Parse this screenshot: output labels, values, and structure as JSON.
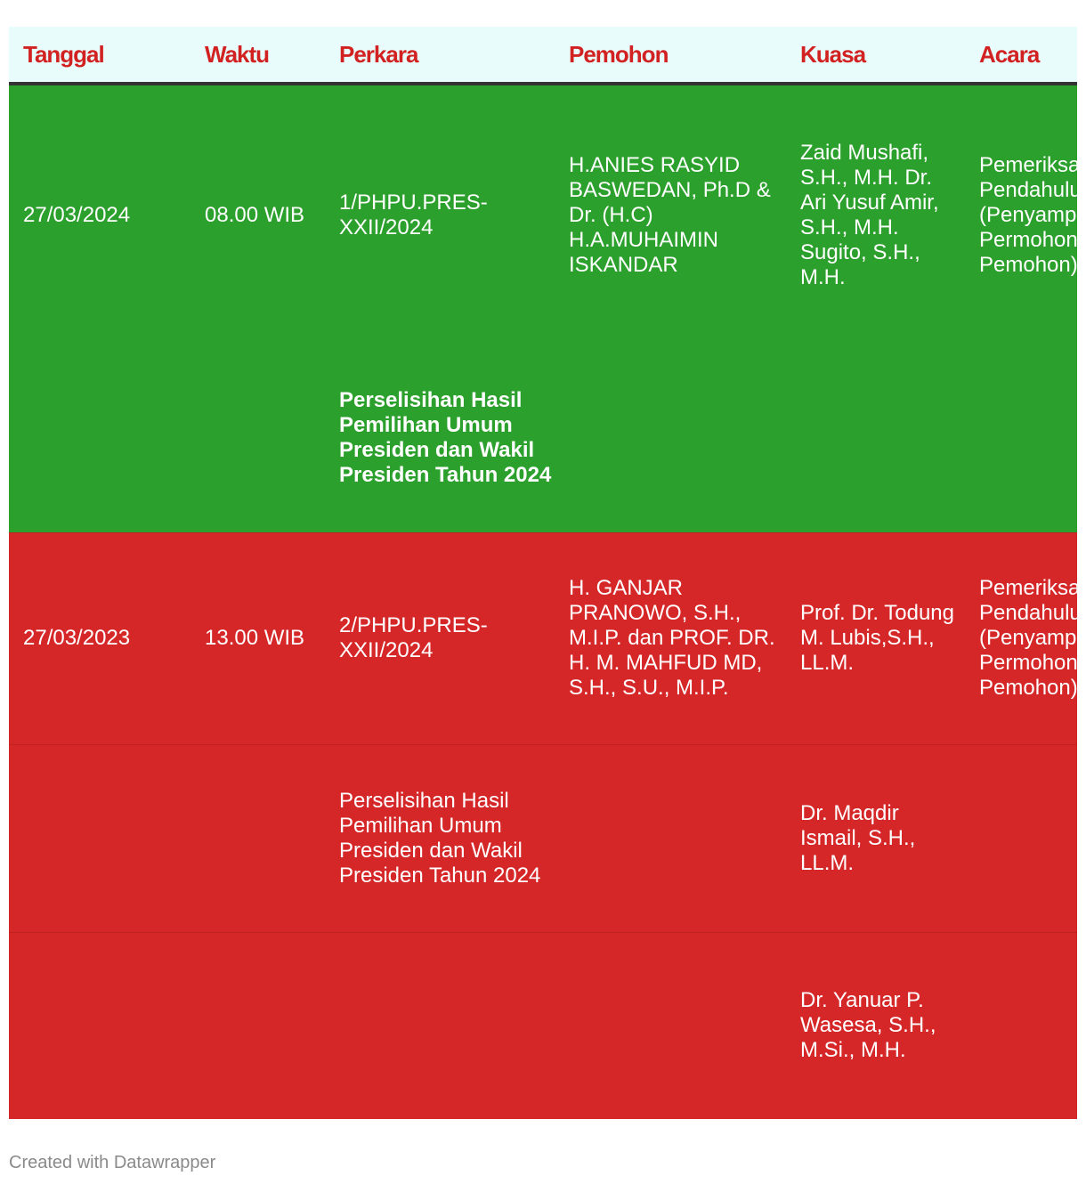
{
  "table": {
    "headers": [
      "Tanggal",
      "Waktu",
      "Perkara",
      "Pemohon",
      "Kuasa",
      "Acara"
    ],
    "rows": [
      {
        "tanggal": "27/03/2024",
        "waktu": "08.00 WIB",
        "perkara": "1/PHPU.PRES-XXII/2024",
        "pemohon": "H.ANIES RASYID BASWEDAN, Ph.D & Dr. (H.C) H.A.MUHAIMIN ISKANDAR",
        "kuasa": "Zaid Mushafi, S.H., M.H. Dr. Ari Yusuf Amir, S.H., M.H. Sugito, S.H., M.H.",
        "acara": "Pemeriksaan Pendahuluan (Penyampaian Permohonan Pemohon)"
      },
      {
        "tanggal": "",
        "waktu": "",
        "perkara": "Perselisihan Hasil Pemilihan Umum Presiden dan Wakil Presiden Tahun 2024",
        "pemohon": "",
        "kuasa": "",
        "acara": ""
      },
      {
        "tanggal": "27/03/2023",
        "waktu": "13.00 WIB",
        "perkara": "2/PHPU.PRES-XXII/2024",
        "pemohon": "H. GANJAR PRANOWO, S.H., M.I.P. dan PROF. DR. H. M. MAHFUD MD, S.H., S.U., M.I.P.",
        "kuasa": "Prof. Dr. Todung M. Lubis,S.H., LL.M.",
        "acara": "Pemeriksaan Pendahuluan (Penyampaian Permohonan Pemohon)"
      },
      {
        "tanggal": "",
        "waktu": "",
        "perkara": "Perselisihan Hasil Pemilihan Umum Presiden dan Wakil Presiden Tahun 2024",
        "pemohon": "",
        "kuasa": "Dr. Maqdir Ismail, S.H., LL.M.",
        "acara": ""
      },
      {
        "tanggal": "",
        "waktu": "",
        "perkara": "",
        "pemohon": "",
        "kuasa": "Dr. Yanuar P. Wasesa, S.H., M.Si., M.H.",
        "acara": ""
      }
    ]
  },
  "colors": {
    "header_background": "#e9fcfc",
    "header_text": "#d22121",
    "row_green": "#2ca02c",
    "row_red": "#d62728",
    "cell_text": "#ffffff"
  },
  "footer": {
    "credit": "Created with Datawrapper"
  }
}
